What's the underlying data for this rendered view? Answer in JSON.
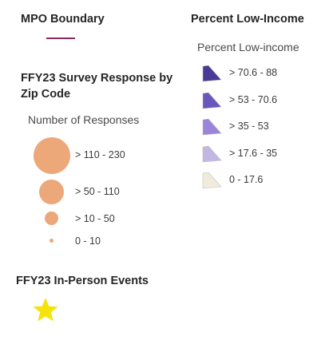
{
  "mpo": {
    "title": "MPO Boundary",
    "line_color": "#8b2a5e"
  },
  "survey": {
    "title_line1": "FFY23 Survey Response by",
    "title_line2": "Zip Code",
    "subtitle": "Number of Responses",
    "color": "#eca879",
    "classes": [
      {
        "label": "> 110 - 230"
      },
      {
        "label": "> 50 - 110"
      },
      {
        "label": "> 10 - 50"
      },
      {
        "label": "0 - 10"
      }
    ]
  },
  "events": {
    "title": "FFY23 In-Person Events",
    "icon": "star-icon",
    "color": "#f4e40a"
  },
  "income": {
    "title": "Percent Low-Income",
    "subtitle": "Percent Low-income",
    "classes": [
      {
        "label": "> 70.6 - 88",
        "color": "#4a3a98"
      },
      {
        "label": "> 53 - 70.6",
        "color": "#6a57bd"
      },
      {
        "label": "> 35 - 53",
        "color": "#9a85db"
      },
      {
        "label": "> 17.6 - 35",
        "color": "#c2b7e3"
      },
      {
        "label": "0 - 17.6",
        "color": "#f0ebda"
      }
    ]
  }
}
